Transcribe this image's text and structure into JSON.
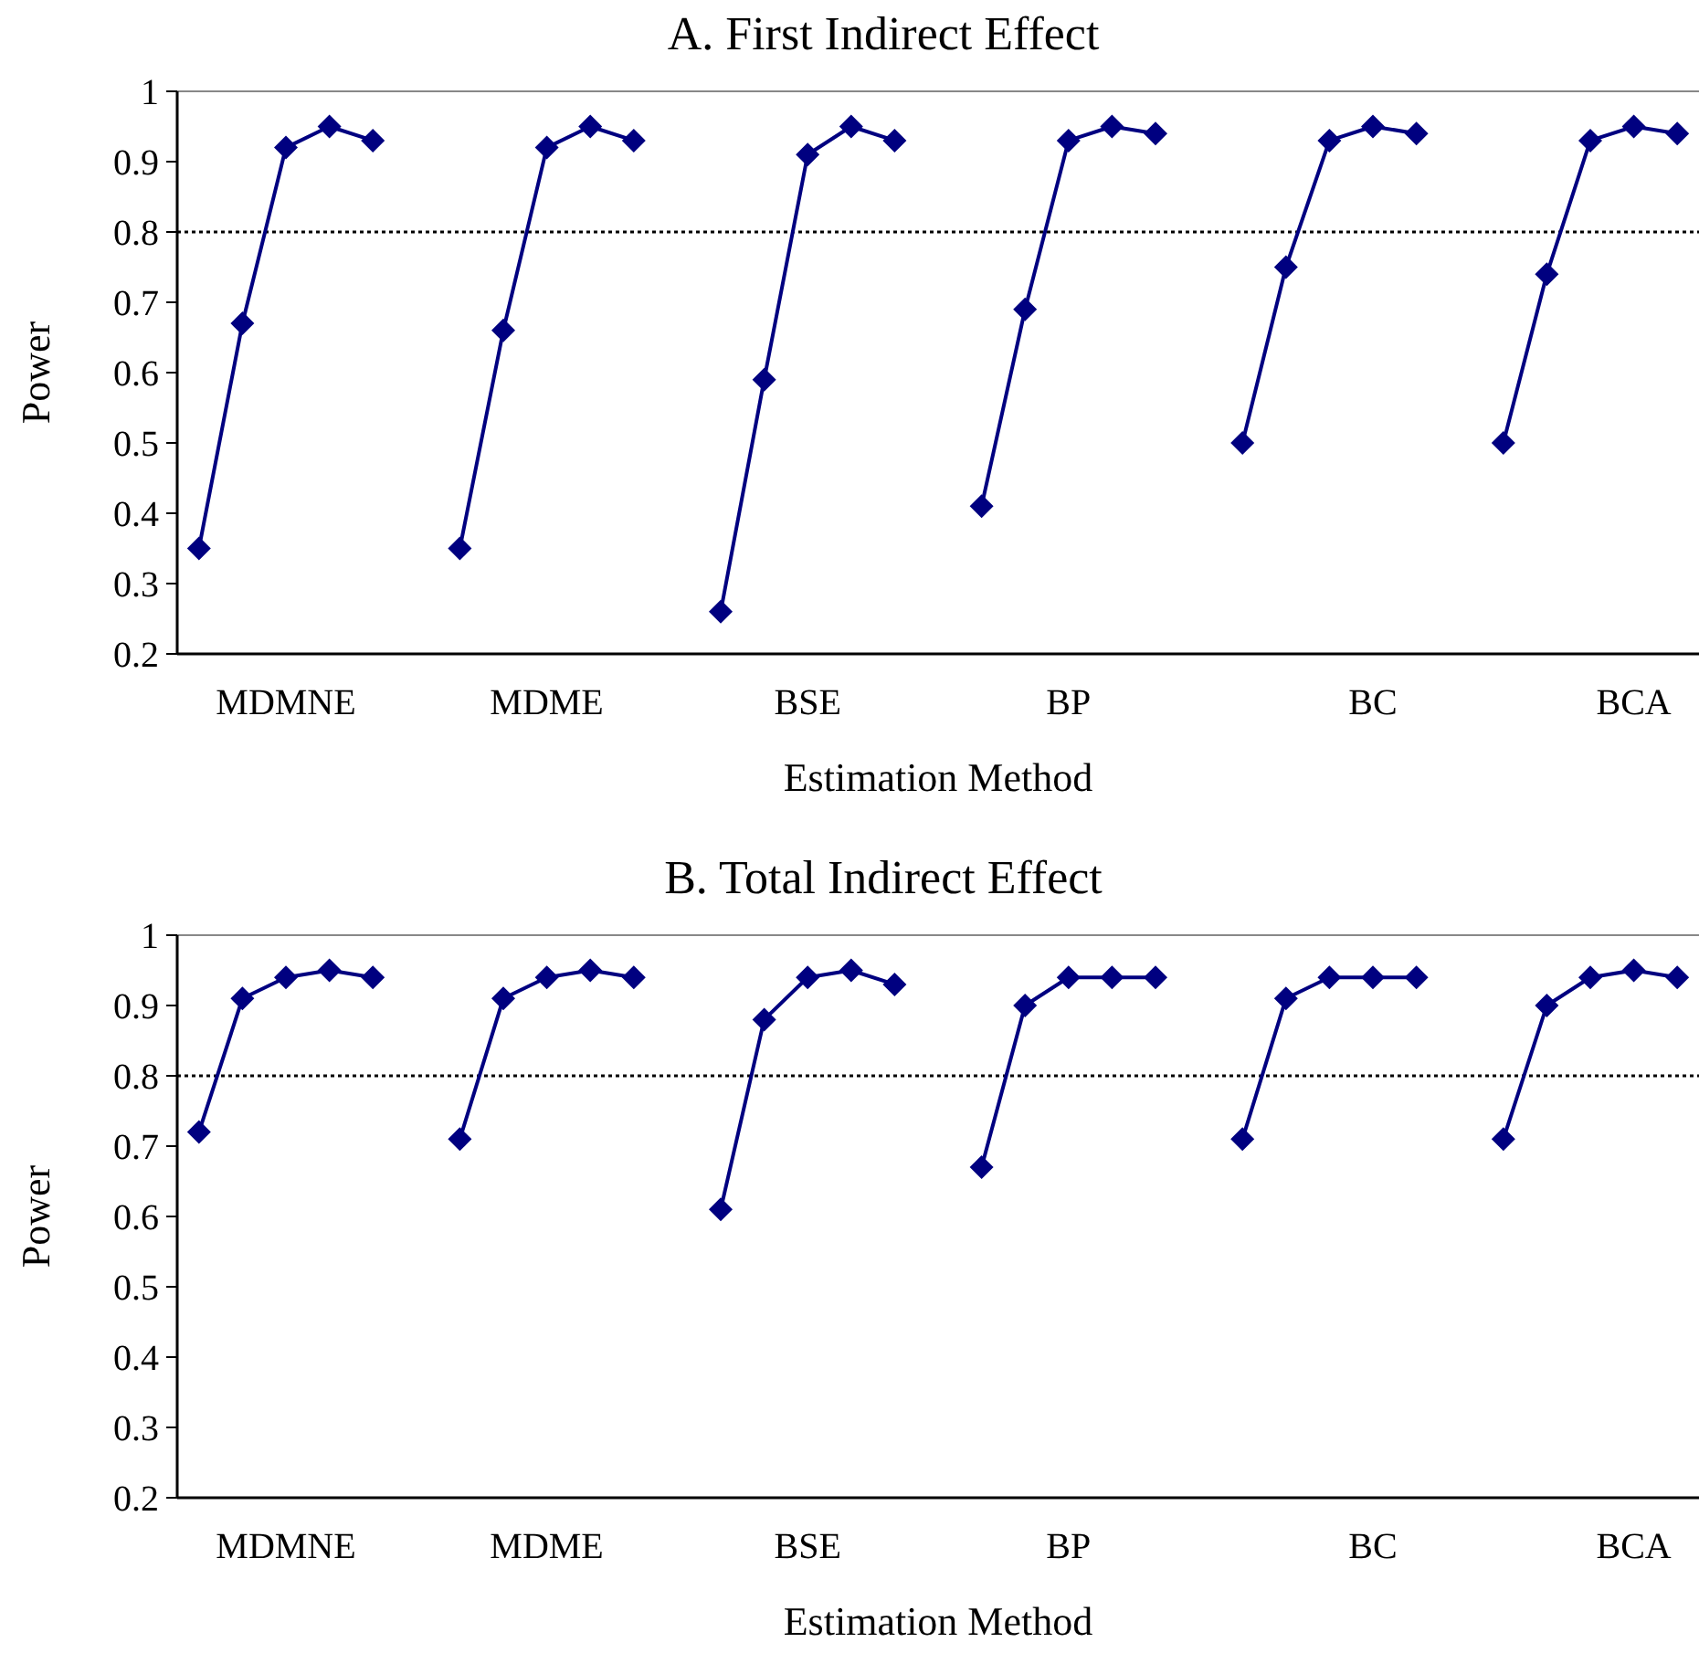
{
  "chart_data": [
    {
      "type": "line",
      "title": "A. First Indirect Effect",
      "xlabel": "Estimation Method",
      "ylabel": "Power",
      "categories": [
        null,
        null,
        "MDMNE",
        null,
        null,
        null,
        null,
        null,
        "MDME",
        null,
        null,
        null,
        null,
        null,
        "BSE",
        null,
        null,
        null,
        null,
        null,
        "BP",
        null,
        null,
        null,
        null,
        null,
        null,
        "BC",
        null,
        null,
        null,
        null,
        null,
        "BCA",
        null
      ],
      "series": [
        {
          "color": "#000080",
          "values": [
            0.35,
            0.67,
            0.92,
            0.95,
            0.93,
            null,
            0.35,
            0.66,
            0.92,
            0.95,
            0.93,
            null,
            0.26,
            0.59,
            0.91,
            0.95,
            0.93,
            null,
            0.41,
            0.69,
            0.93,
            0.95,
            0.94,
            null,
            0.5,
            0.75,
            0.93,
            0.95,
            0.94,
            null,
            0.5,
            0.74,
            0.93,
            0.95,
            0.94
          ]
        }
      ],
      "ylim": [
        0.2,
        1
      ],
      "yticks": [
        0.2,
        0.3,
        0.4,
        0.5,
        0.6,
        0.7,
        0.8,
        0.9,
        1
      ],
      "marker": "diamond",
      "line_style": "solid",
      "ref_lines": [
        {
          "axis": "y",
          "value": 0.8,
          "color": "#000000",
          "line_style": "dotted"
        }
      ]
    },
    {
      "type": "line",
      "title": "B. Total Indirect Effect",
      "xlabel": "Estimation Method",
      "ylabel": "Power",
      "categories": [
        null,
        null,
        "MDMNE",
        null,
        null,
        null,
        null,
        null,
        "MDME",
        null,
        null,
        null,
        null,
        null,
        "BSE",
        null,
        null,
        null,
        null,
        null,
        "BP",
        null,
        null,
        null,
        null,
        null,
        null,
        "BC",
        null,
        null,
        null,
        null,
        null,
        "BCA",
        null
      ],
      "series": [
        {
          "color": "#000080",
          "values": [
            0.72,
            0.91,
            0.94,
            0.95,
            0.94,
            null,
            0.71,
            0.91,
            0.94,
            0.95,
            0.94,
            null,
            0.61,
            0.88,
            0.94,
            0.95,
            0.93,
            null,
            0.67,
            0.9,
            0.94,
            0.94,
            0.94,
            null,
            0.71,
            0.91,
            0.94,
            0.94,
            0.94,
            null,
            0.71,
            0.9,
            0.94,
            0.95,
            0.94
          ]
        }
      ],
      "ylim": [
        0.2,
        1
      ],
      "yticks": [
        0.2,
        0.3,
        0.4,
        0.5,
        0.6,
        0.7,
        0.8,
        0.9,
        1
      ],
      "marker": "diamond",
      "line_style": "solid",
      "ref_lines": [
        {
          "axis": "y",
          "value": 0.8,
          "color": "#000000",
          "line_style": "dotted"
        }
      ]
    }
  ]
}
